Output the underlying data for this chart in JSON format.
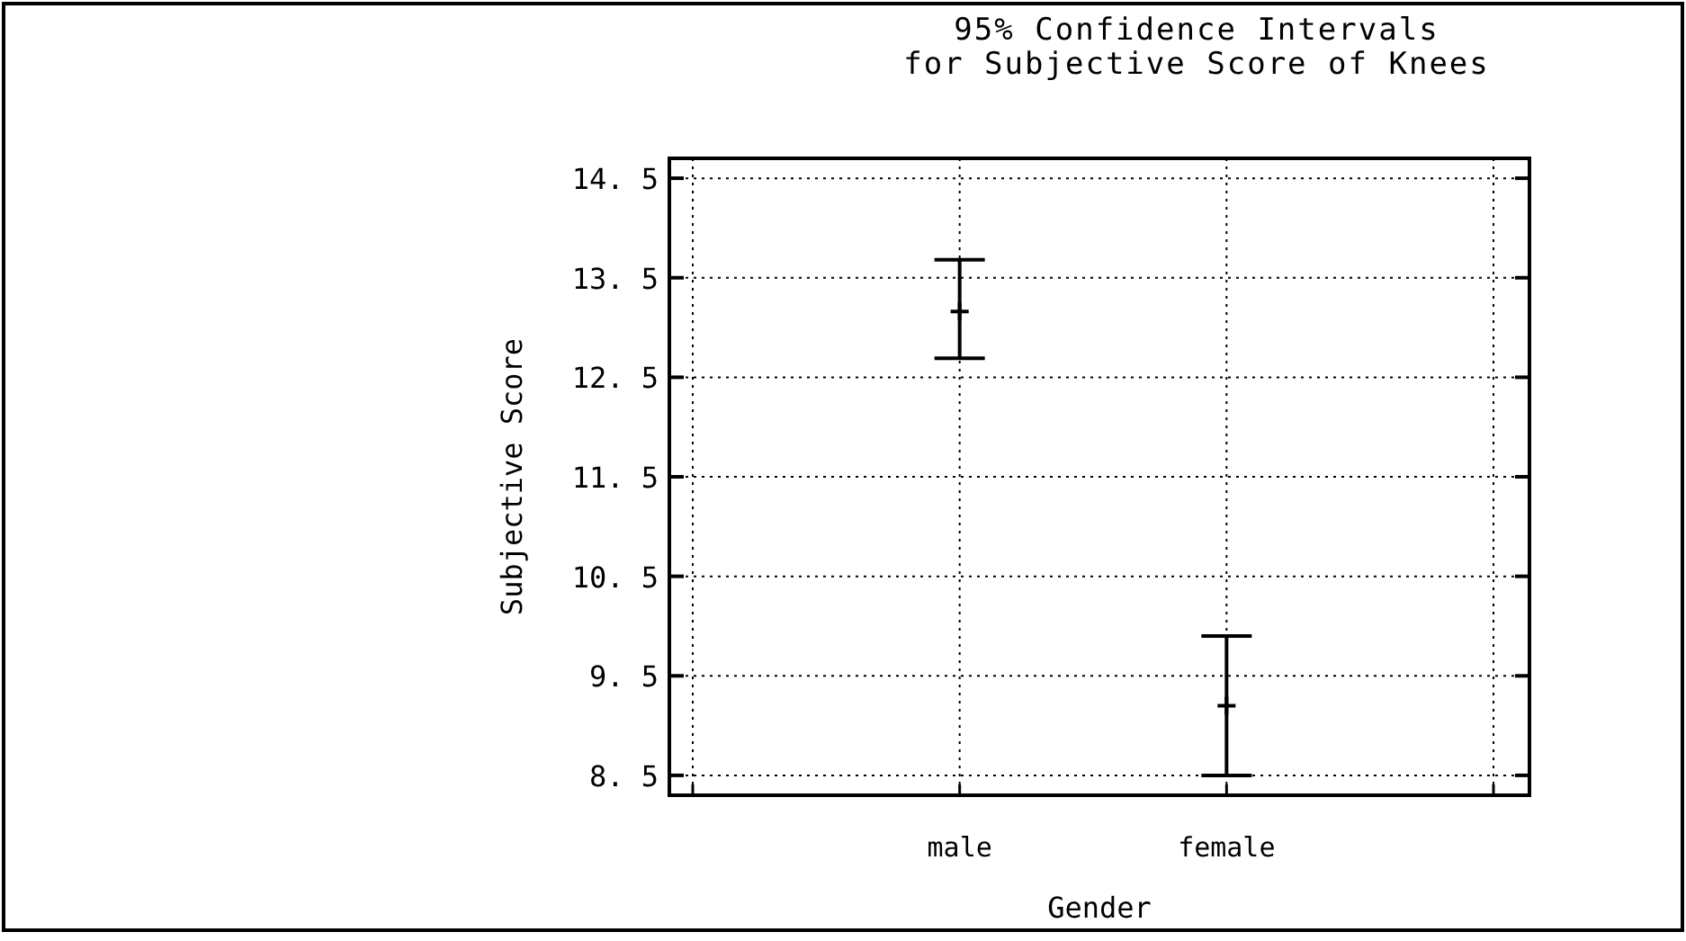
{
  "chart_data": {
    "type": "scatter",
    "title": "95% Confidence Intervals",
    "subtitle": "for Subjective Score of Knees",
    "xlabel": "Gender",
    "ylabel": "Subjective Score",
    "categories": [
      null,
      "male",
      "female",
      null
    ],
    "series": [
      {
        "color": "#000000",
        "values": [
          null,
          13.16,
          9.2,
          null
        ],
        "errors": [
          null,
          [
            12.69,
            13.68
          ],
          [
            8.5,
            9.9
          ],
          null
        ]
      }
    ],
    "ylim": [
      8.3,
      14.7
    ],
    "yticks": [
      8.5,
      9.5,
      10.5,
      11.5,
      12.5,
      13.5,
      14.5
    ],
    "grid": true,
    "marker": "cross"
  }
}
